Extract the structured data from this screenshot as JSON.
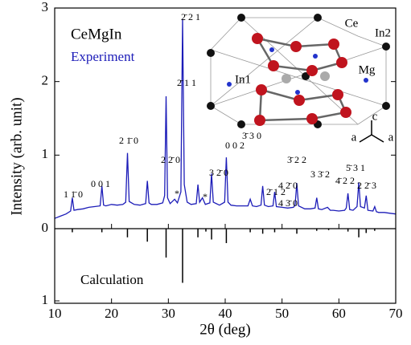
{
  "chart_data": [
    {
      "type": "line",
      "title": "CeMgIn",
      "ylabel": "Intensity (arb. unit)",
      "xlabel": "2θ (deg)",
      "xlim": [
        10,
        70
      ],
      "ylim": [
        0,
        3
      ],
      "yticks": [
        1,
        2,
        3
      ],
      "x": [
        10,
        11,
        12,
        12.8,
        13.1,
        13.4,
        14,
        15,
        16,
        17,
        18,
        18.3,
        18.6,
        19,
        20,
        21,
        22,
        22.5,
        22.8,
        23.1,
        24,
        25,
        26,
        26.3,
        26.6,
        27,
        28,
        29,
        29.35,
        29.6,
        29.85,
        30.3,
        31.1,
        31.6,
        32.2,
        32.5,
        32.8,
        33.3,
        34,
        34.9,
        35.2,
        35.5,
        36,
        36.5,
        37.3,
        37.6,
        37.9,
        39,
        39.9,
        40.2,
        40.5,
        41,
        42,
        43,
        44,
        44.4,
        44.8,
        45.5,
        46.3,
        46.6,
        46.9,
        47.6,
        48.4,
        48.7,
        49,
        50,
        51,
        52,
        52.3,
        52.6,
        52.9,
        54,
        55,
        55.8,
        56.1,
        56.4,
        57,
        58,
        58.5,
        59,
        60,
        61,
        61.3,
        61.6,
        61.9,
        62.5,
        63.2,
        63.5,
        63.8,
        64.5,
        64.8,
        65.1,
        66,
        66.3,
        66.6,
        67,
        68,
        69,
        70
      ],
      "series": [
        {
          "name": "Experiment",
          "color": "#1c1cb8",
          "values": [
            0.14,
            0.17,
            0.2,
            0.24,
            0.42,
            0.25,
            0.26,
            0.27,
            0.29,
            0.3,
            0.31,
            0.58,
            0.32,
            0.31,
            0.33,
            0.32,
            0.33,
            0.36,
            1.03,
            0.37,
            0.33,
            0.32,
            0.34,
            0.65,
            0.35,
            0.33,
            0.33,
            0.35,
            0.45,
            1.8,
            0.42,
            0.34,
            0.4,
            0.35,
            0.5,
            2.85,
            0.6,
            0.36,
            0.33,
            0.34,
            0.6,
            0.36,
            0.42,
            0.33,
            0.35,
            0.75,
            0.36,
            0.32,
            0.36,
            0.97,
            0.36,
            0.32,
            0.31,
            0.31,
            0.31,
            0.4,
            0.31,
            0.3,
            0.32,
            0.58,
            0.32,
            0.3,
            0.31,
            0.5,
            0.3,
            0.29,
            0.28,
            0.29,
            0.32,
            0.62,
            0.31,
            0.27,
            0.27,
            0.28,
            0.42,
            0.27,
            0.26,
            0.29,
            0.25,
            0.25,
            0.24,
            0.25,
            0.28,
            0.48,
            0.26,
            0.25,
            0.3,
            0.63,
            0.3,
            0.28,
            0.45,
            0.25,
            0.24,
            0.3,
            0.23,
            0.22,
            0.22,
            0.21,
            0.2
          ]
        }
      ],
      "annotations": [
        "1 1̄ 0",
        "0 0 1",
        "2 1̄ 0",
        "2 2̄ 0",
        "2̄ 1 1",
        "2̄ 2 1",
        "*",
        "3 2̄ 0",
        "*",
        "0 0 2",
        "3̄ 3 0",
        "2̄ 1 2",
        "4 2̄ 0",
        "4 3̄ 0",
        "3̄ 2 2",
        "3 3̄ 2",
        "4̄ 2 2",
        "5̄ 3 1",
        "2 2̄ 3"
      ],
      "inset_labels": [
        "Ce",
        "In2",
        "Mg",
        "In1",
        "c",
        "a",
        "a"
      ]
    },
    {
      "type": "stem",
      "xlim": [
        10,
        70
      ],
      "ylim": [
        0,
        1
      ],
      "yticks": [
        0,
        1
      ],
      "xticks": [
        10,
        20,
        30,
        40,
        50,
        60,
        70
      ],
      "x": [
        13.1,
        18.3,
        22.8,
        26.3,
        29.6,
        32.5,
        35.2,
        36.6,
        37.6,
        40.2,
        44.4,
        46.6,
        48.7,
        52.6,
        56.1,
        58.2,
        61.6,
        63.5,
        64.8,
        66.3
      ],
      "series": [
        {
          "name": "Calculation",
          "color": "#000000",
          "values": [
            0.05,
            0.05,
            0.12,
            0.18,
            0.4,
            0.75,
            0.12,
            0.04,
            0.15,
            0.2,
            0.05,
            0.07,
            0.05,
            0.07,
            0.03,
            0.02,
            0.04,
            0.12,
            0.06,
            0.03
          ]
        }
      ]
    }
  ]
}
